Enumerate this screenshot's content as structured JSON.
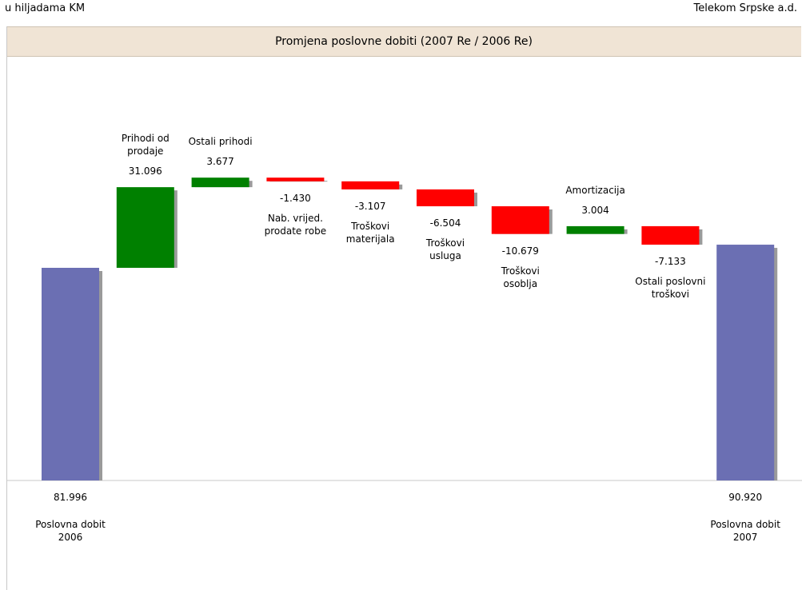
{
  "chart_data": {
    "type": "waterfall",
    "unit_note": "u hiljadama KM",
    "company": "Telekom Srpske a.d.",
    "title": "Promjena poslovne dobiti (2007 Re / 2006 Re)",
    "categories": [
      "Poslovna dobit\n2006",
      "Prihodi od\nprodaje",
      "Ostali prihodi",
      "Nab. vrijed.\nprodate robe",
      "Troškovi\nmaterijala",
      "Troškovi\nusluga",
      "Troškovi\nosoblja",
      "Amortizacija",
      "Ostali poslovni\ntroškovi",
      "Poslovna dobit\n2007"
    ],
    "measure": [
      "absolute",
      "relative",
      "relative",
      "relative",
      "relative",
      "relative",
      "relative",
      "relative",
      "relative",
      "total"
    ],
    "values": [
      81996,
      31096,
      3677,
      -1430,
      -3107,
      -6504,
      -10679,
      3004,
      -7133,
      90920
    ],
    "value_labels": [
      "81.996",
      "31.096",
      "3.677",
      "-1.430",
      "-3.107",
      "-6.504",
      "-10.679",
      "3.004",
      "-7.133",
      "90.920"
    ],
    "total_color": "#6b6fb3",
    "increase_color": "#008000",
    "decrease_color": "#ff0000"
  }
}
